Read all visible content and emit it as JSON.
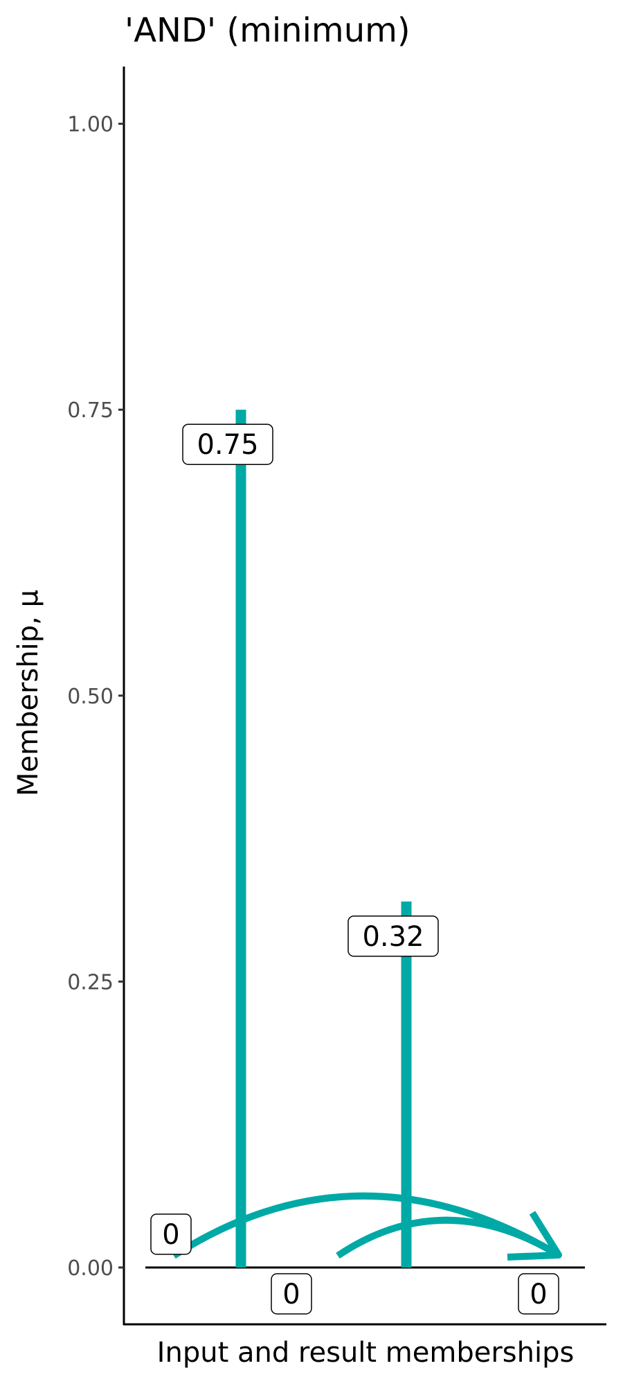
{
  "chart_data": {
    "type": "bar",
    "title": "'AND' (minimum)",
    "xlabel": "Input and result memberships",
    "ylabel": "Membership, µ",
    "ylim": [
      -0.05,
      1.05
    ],
    "yticks": [
      0,
      0.25,
      0.5,
      0.75,
      1.0
    ],
    "ytick_labels": [
      "0.00",
      "0.25",
      "0.50",
      "0.75",
      "1.00"
    ],
    "grid": false,
    "bars": [
      {
        "x": 2,
        "value": 0.75,
        "label": "0.75"
      },
      {
        "x": 4,
        "value": 0.32,
        "label": "0.32"
      }
    ],
    "zero_labels": [
      {
        "x": 1,
        "label": "0",
        "position": "above"
      },
      {
        "x": 3,
        "label": "0",
        "position": "below"
      },
      {
        "x": 5,
        "label": "0",
        "position": "below"
      }
    ],
    "arrows": [
      {
        "from_x": 1,
        "to_x": 5,
        "value": 0
      },
      {
        "from_x": 3,
        "to_x": 5,
        "value": 0
      }
    ],
    "color": "#00A9A5"
  }
}
